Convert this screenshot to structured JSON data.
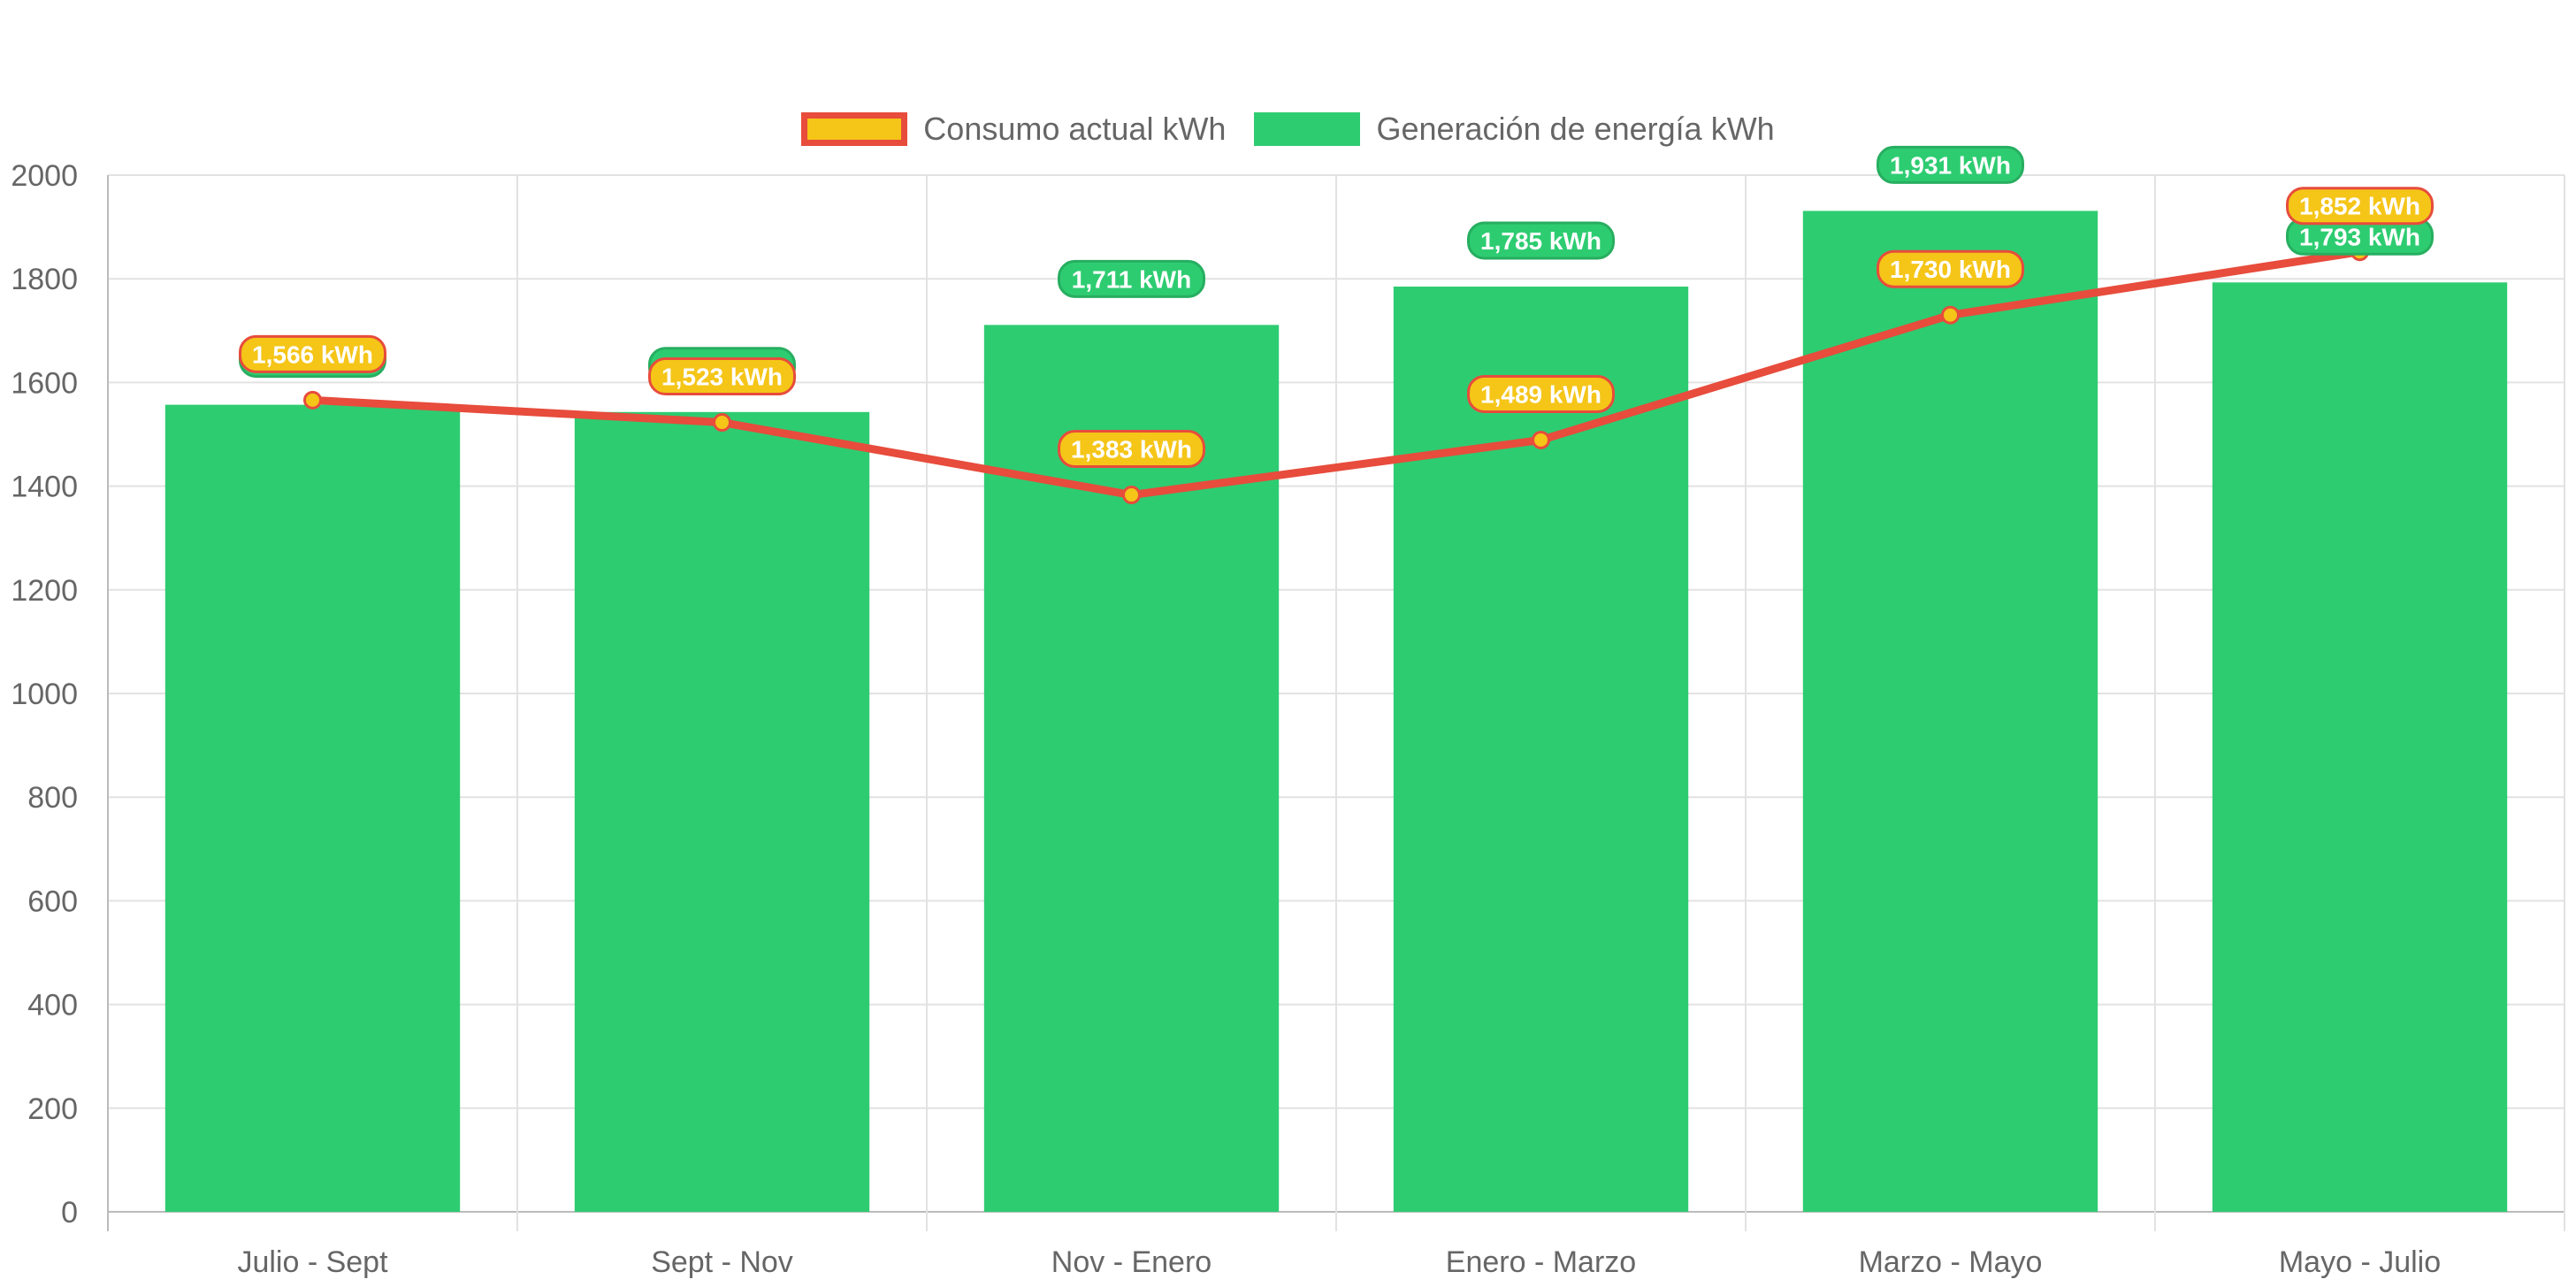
{
  "chart_data": {
    "type": "bar",
    "categories": [
      "Julio - Sept",
      "Sept - Nov",
      "Nov - Enero",
      "Enero - Marzo",
      "Marzo - Mayo",
      "Mayo - Julio"
    ],
    "series": [
      {
        "name": "Consumo actual kWh",
        "type": "line",
        "values": [
          1566,
          1523,
          1383,
          1489,
          1730,
          1852
        ],
        "labels": [
          "1,566 kWh",
          "1,523 kWh",
          "1,383 kWh",
          "1,489 kWh",
          "1,730 kWh",
          "1,852 kWh"
        ],
        "color": "#f5c518",
        "border_color": "#e74c3c"
      },
      {
        "name": "Generación de energía kWh",
        "type": "bar",
        "values": [
          1557,
          1543,
          1711,
          1785,
          1931,
          1793
        ],
        "labels": [
          "1,557 kWh",
          "1,543 kWh",
          "1,711 kWh",
          "1,785 kWh",
          "1,931 kWh",
          "1,793 kWh"
        ],
        "color": "#2ecc71",
        "border_color": "#27ae60"
      }
    ],
    "y_ticks": [
      "0",
      "200",
      "400",
      "600",
      "800",
      "1000",
      "1200",
      "1400",
      "1600",
      "1800",
      "2000"
    ],
    "ylim": [
      0,
      2000
    ],
    "grid": true,
    "legend_position": "top-center"
  }
}
